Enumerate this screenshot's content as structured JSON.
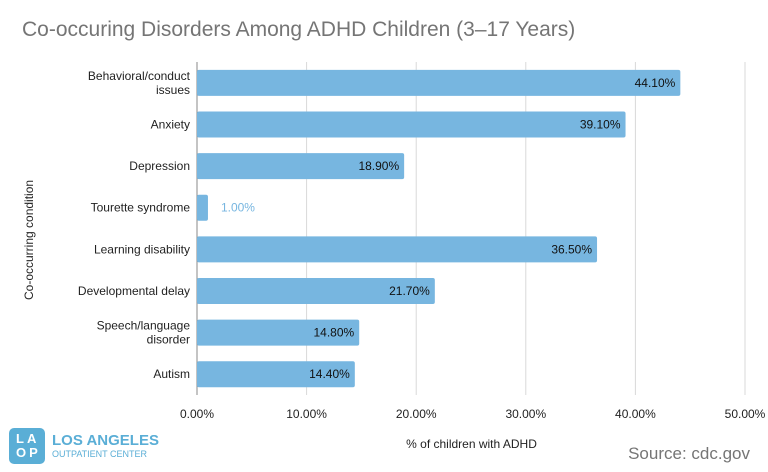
{
  "chart_data": {
    "type": "bar",
    "orientation": "horizontal",
    "title": "Co-occuring Disorders Among ADHD Children (3–17 Years)",
    "xlabel": "% of children with ADHD",
    "ylabel": "Co-occurring condition",
    "categories": [
      "Behavioral/conduct issues",
      "Anxiety",
      "Depression",
      "Tourette syndrome",
      "Learning disability",
      "Developmental delay",
      "Speech/language disorder",
      "Autism"
    ],
    "category_lines": [
      [
        "Behavioral/conduct",
        "issues"
      ],
      [
        "Anxiety"
      ],
      [
        "Depression"
      ],
      [
        "Tourette syndrome"
      ],
      [
        "Learning disability"
      ],
      [
        "Developmental delay"
      ],
      [
        "Speech/language",
        "disorder"
      ],
      [
        "Autism"
      ]
    ],
    "values": [
      44.1,
      39.1,
      18.9,
      1.0,
      36.5,
      21.7,
      14.8,
      14.4
    ],
    "data_labels": [
      "44.10%",
      "39.10%",
      "18.90%",
      "1.00%",
      "36.50%",
      "21.70%",
      "14.80%",
      "14.40%"
    ],
    "xlim": [
      0,
      50
    ],
    "ticks": [
      0,
      10,
      20,
      30,
      40,
      50
    ],
    "tick_labels": [
      "0.00%",
      "10.00%",
      "20.00%",
      "30.00%",
      "40.00%",
      "50.00%"
    ],
    "grid": true,
    "bar_color": "#77b6e0"
  },
  "source": "Source: cdc.gov",
  "logo": {
    "mark_top": "LA",
    "mark_bottom": "OP",
    "line1": "LOS ANGELES",
    "line2": "OUTPATIENT CENTER"
  }
}
